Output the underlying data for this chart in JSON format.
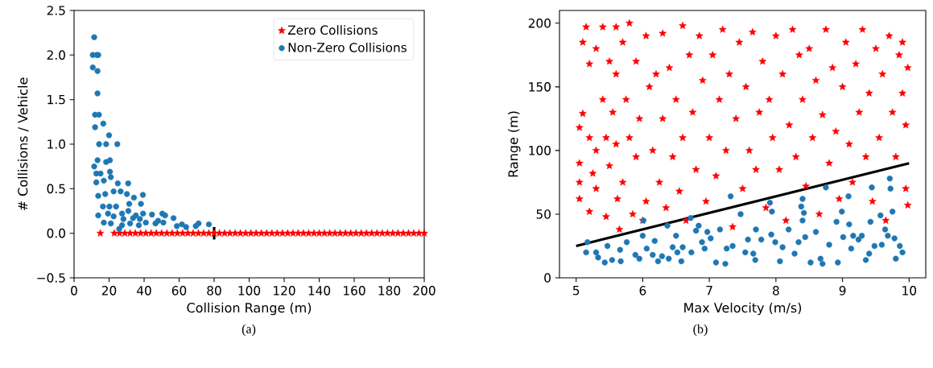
{
  "chart_data": [
    {
      "type": "scatter",
      "xlabel": "Collision Range (m)",
      "ylabel": "# Collisions / Vehicle",
      "annotations": [
        "(a)"
      ],
      "xlim": [
        0,
        200
      ],
      "ylim": [
        -0.5,
        2.5
      ],
      "xticks": [
        0,
        20,
        40,
        60,
        80,
        100,
        120,
        140,
        160,
        180,
        200
      ],
      "yticks": [
        {
          "value": -0.5,
          "label": "−0.5"
        },
        {
          "value": 0,
          "label": "0.0"
        },
        0.5,
        {
          "value": 1,
          "label": "1.0"
        },
        1.5,
        {
          "value": 2,
          "label": "2.0"
        },
        2.5
      ],
      "legend": "top right",
      "series": [
        {
          "name": "Zero Collisions",
          "color": "#ff0000",
          "marker": "star",
          "x": [
            15,
            23,
            26,
            29,
            32,
            35,
            38,
            41,
            44,
            47,
            50,
            53,
            56,
            59,
            62,
            65,
            68,
            71,
            74,
            77,
            80,
            83,
            86,
            89,
            92,
            95,
            98,
            101,
            104,
            107,
            110,
            113,
            116,
            119,
            122,
            125,
            128,
            131,
            134,
            137,
            140,
            143,
            146,
            149,
            152,
            155,
            158,
            161,
            164,
            167,
            170,
            173,
            176,
            179,
            182,
            185,
            188,
            191,
            194,
            197,
            200
          ],
          "values": [
            0,
            0,
            0,
            0,
            0,
            0,
            0,
            0,
            0,
            0,
            0,
            0,
            0,
            0,
            0,
            0,
            0,
            0,
            0,
            0,
            0,
            0,
            0,
            0,
            0,
            0,
            0,
            0,
            0,
            0,
            0,
            0,
            0,
            0,
            0,
            0,
            0,
            0,
            0,
            0,
            0,
            0,
            0,
            0,
            0,
            0,
            0,
            0,
            0,
            0,
            0,
            0,
            0,
            0,
            0,
            0,
            0,
            0,
            0,
            0,
            0
          ]
        },
        {
          "name": "Non-Zero Collisions",
          "color": "#1f77b4",
          "marker": "circle",
          "x": [
            11.5,
            10.7,
            13,
            13.8,
            10.7,
            13.4,
            13.4,
            12,
            14.2,
            12,
            16.7,
            20,
            14.3,
            18.3,
            24.7,
            11.5,
            13.4,
            18.3,
            20.5,
            12.7,
            15.1,
            20.5,
            12.7,
            17,
            21,
            25,
            30.9,
            13.8,
            17.8,
            22.6,
            26.6,
            30.2,
            34.2,
            39.3,
            16.5,
            20.2,
            24,
            31.5,
            38.2,
            13.8,
            19.4,
            22.6,
            27.4,
            35.3,
            39.4,
            44.5,
            50.4,
            52,
            17,
            21,
            27.4,
            32,
            37,
            41,
            46.5,
            56.8,
            58.7,
            61.6,
            64,
            69.5,
            71.1,
            77,
            25.8,
            28.2,
            33.7,
            31,
            37.6,
            48,
            51
          ],
          "values": [
            2.2,
            2.0,
            2.0,
            2.0,
            1.86,
            1.82,
            1.57,
            1.33,
            1.33,
            1.19,
            1.23,
            1.1,
            1.0,
            1.0,
            1.0,
            0.75,
            0.82,
            0.8,
            0.82,
            0.67,
            0.67,
            0.69,
            0.57,
            0.59,
            0.63,
            0.56,
            0.56,
            0.42,
            0.44,
            0.47,
            0.47,
            0.44,
            0.4,
            0.43,
            0.3,
            0.3,
            0.3,
            0.33,
            0.33,
            0.2,
            0.22,
            0.19,
            0.22,
            0.2,
            0.22,
            0.21,
            0.22,
            0.2,
            0.12,
            0.11,
            0.09,
            0.11,
            0.09,
            0.12,
            0.11,
            0.17,
            0.08,
            0.1,
            0.07,
            0.08,
            0.11,
            0.1,
            0.05,
            0.16,
            0.17,
            0.25,
            0.16,
            0.14,
            0.12
          ]
        },
        {
          "type": "line",
          "color": "#000000",
          "x": [
            80,
            80
          ],
          "values": [
            -0.07,
            0.07
          ]
        }
      ]
    },
    {
      "type": "scatter",
      "xlabel": "Max Velocity (m/s)",
      "ylabel": "Range (m)",
      "annotations": [
        "(b)"
      ],
      "xlim": [
        4.75,
        10.25
      ],
      "ylim": [
        0,
        210
      ],
      "xticks": [
        5,
        6,
        7,
        8,
        9,
        10
      ],
      "yticks": [
        0,
        50,
        100,
        150,
        200
      ],
      "series": [
        {
          "color": "#ff0000",
          "marker": "star",
          "x": [
            5.05,
            5.05,
            5.05,
            5.1,
            5.1,
            5.05,
            5.15,
            5.2,
            5.2,
            5.2,
            5.25,
            5.3,
            5.3,
            5.3,
            5.4,
            5.4,
            5.45,
            5.45,
            5.5,
            5.5,
            5.55,
            5.6,
            5.6,
            5.6,
            5.62,
            5.65,
            5.7,
            5.7,
            5.75,
            5.8,
            5.8,
            5.85,
            5.9,
            5.9,
            5.95,
            6.0,
            6.05,
            6.05,
            6.1,
            6.15,
            6.2,
            6.25,
            6.3,
            6.3,
            6.35,
            6.4,
            6.45,
            6.5,
            6.55,
            6.6,
            6.6,
            6.65,
            6.7,
            6.75,
            6.8,
            6.85,
            6.9,
            6.95,
            7.0,
            7.05,
            7.1,
            7.15,
            7.2,
            7.25,
            7.3,
            7.35,
            7.4,
            7.45,
            7.5,
            7.55,
            7.6,
            7.65,
            7.7,
            7.75,
            7.8,
            7.85,
            7.9,
            7.95,
            8.0,
            8.05,
            8.1,
            8.15,
            8.2,
            8.25,
            8.3,
            8.35,
            8.4,
            8.45,
            8.5,
            8.55,
            8.6,
            8.65,
            8.7,
            8.75,
            8.8,
            8.85,
            8.9,
            8.95,
            9.0,
            9.05,
            9.1,
            9.15,
            9.2,
            9.25,
            9.3,
            9.35,
            9.4,
            9.45,
            9.5,
            9.55,
            9.6,
            9.65,
            9.7,
            9.75,
            9.8,
            9.85,
            9.9,
            9.95,
            9.95,
            9.98,
            9.98,
            9.9
          ],
          "values": [
            118,
            90,
            62,
            185,
            129,
            75,
            197,
            168,
            110,
            52,
            82,
            180,
            100,
            70,
            197,
            140,
            110,
            48,
            170,
            88,
            130,
            197,
            160,
            105,
            62,
            38,
            185,
            75,
            140,
            200,
            110,
            50,
            170,
            95,
            125,
            45,
            190,
            60,
            150,
            100,
            160,
            75,
            192,
            125,
            55,
            165,
            95,
            140,
            68,
            198,
            110,
            45,
            175,
            130,
            85,
            190,
            155,
            60,
            110,
            175,
            80,
            140,
            195,
            100,
            160,
            40,
            125,
            185,
            70,
            150,
            100,
            193,
            85,
            130,
            170,
            55,
            140,
            110,
            190,
            85,
            160,
            45,
            120,
            195,
            95,
            175,
            140,
            72,
            180,
            110,
            155,
            50,
            128,
            195,
            90,
            165,
            115,
            62,
            150,
            185,
            105,
            75,
            168,
            130,
            195,
            95,
            145,
            60,
            180,
            110,
            160,
            45,
            190,
            130,
            95,
            175,
            145,
            70,
            120,
            165,
            57,
            185
          ]
        },
        {
          "color": "#1f77b4",
          "marker": "circle",
          "x": [
            5.15,
            5.17,
            5.3,
            5.33,
            5.43,
            5.47,
            5.54,
            5.67,
            5.66,
            5.76,
            5.89,
            5.95,
            6.0,
            6.01,
            6.06,
            6.15,
            6.18,
            6.23,
            6.29,
            6.37,
            6.39,
            6.45,
            6.5,
            6.52,
            6.58,
            6.6,
            6.72,
            6.73,
            6.8,
            6.84,
            6.89,
            6.93,
            6.97,
            7.02,
            7.1,
            7.16,
            7.24,
            7.26,
            7.32,
            7.35,
            7.47,
            7.54,
            7.58,
            7.66,
            7.69,
            7.7,
            7.78,
            7.91,
            7.94,
            7.93,
            7.99,
            8.06,
            8.1,
            8.19,
            8.28,
            8.34,
            8.4,
            8.38,
            8.42,
            8.4,
            8.44,
            8.52,
            8.6,
            8.67,
            8.7,
            8.75,
            8.8,
            8.91,
            8.93,
            8.99,
            9.01,
            9.09,
            9.1,
            9.13,
            9.16,
            9.24,
            9.29,
            9.35,
            9.4,
            9.44,
            9.42,
            9.48,
            9.57,
            9.59,
            9.64,
            9.68,
            9.71,
            9.72,
            9.75,
            9.78,
            9.8,
            9.86,
            9.9
          ],
          "values": [
            20,
            28,
            20,
            16,
            12,
            25,
            14,
            13,
            22,
            28,
            18,
            15,
            33,
            45,
            23,
            18,
            29,
            13,
            17,
            41,
            15,
            24,
            33,
            20,
            13,
            24,
            47,
            20,
            37,
            41,
            28,
            23,
            36,
            31,
            12,
            38,
            11,
            23,
            64,
            25,
            50,
            20,
            30,
            19,
            14,
            38,
            30,
            59,
            52,
            34,
            28,
            13,
            24,
            38,
            19,
            28,
            62,
            56,
            51,
            45,
            32,
            12,
            36,
            15,
            11,
            71,
            26,
            44,
            12,
            52,
            32,
            64,
            42,
            23,
            33,
            30,
            33,
            14,
            19,
            71,
            44,
            25,
            49,
            26,
            38,
            33,
            78,
            70,
            52,
            31,
            15,
            25,
            20
          ]
        },
        {
          "type": "line",
          "color": "#000000",
          "x": [
            5,
            10
          ],
          "values": [
            25,
            90
          ]
        }
      ]
    }
  ]
}
